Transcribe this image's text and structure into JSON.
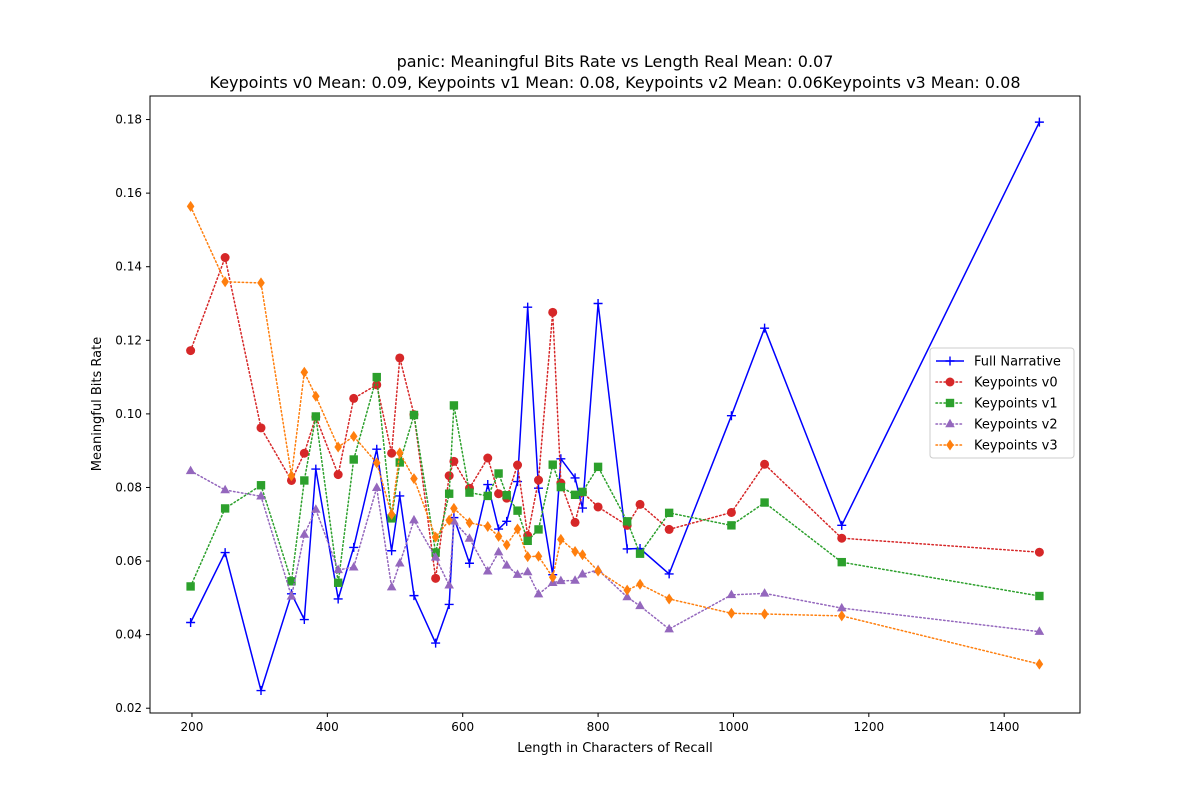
{
  "chart_data": {
    "type": "line",
    "title_line1": "panic: Meaningful Bits Rate vs Length Real Mean: 0.07",
    "title_line2": "Keypoints v0 Mean: 0.09, Keypoints v1 Mean: 0.08, Keypoints v2 Mean: 0.06Keypoints v3 Mean: 0.08",
    "xlabel": "Length in Characters of Recall",
    "ylabel": "Meaningful Bits Rate",
    "xlim": [
      138,
      1512
    ],
    "ylim": [
      0.0187,
      0.1864
    ],
    "xticks": [
      200,
      400,
      600,
      800,
      1000,
      1200,
      1400
    ],
    "yticks": [
      0.02,
      0.04,
      0.06,
      0.08,
      0.1,
      0.12,
      0.14,
      0.16,
      0.18
    ],
    "ytick_labels": [
      "0.02",
      "0.04",
      "0.06",
      "0.08",
      "0.10",
      "0.12",
      "0.14",
      "0.16",
      "0.18"
    ],
    "legend_position": "center-right",
    "series": [
      {
        "name": "Full Narrative",
        "color": "#0000ff",
        "marker": "plus",
        "linestyle": "solid",
        "x": [
          198,
          249,
          302,
          347,
          366,
          383,
          416,
          439,
          473,
          495,
          507,
          528,
          560,
          580,
          587,
          610,
          637,
          653,
          665,
          681,
          696,
          712,
          733,
          745,
          766,
          777,
          800,
          843,
          862,
          905,
          997,
          1046,
          1160,
          1452
        ],
        "y": [
          0.0433,
          0.0623,
          0.0248,
          0.0511,
          0.0441,
          0.085,
          0.0497,
          0.0637,
          0.0904,
          0.0628,
          0.0777,
          0.0506,
          0.0377,
          0.0482,
          0.0718,
          0.0594,
          0.0808,
          0.0687,
          0.0708,
          0.0816,
          0.129,
          0.0798,
          0.0563,
          0.0878,
          0.0826,
          0.0744,
          0.13,
          0.0633,
          0.0634,
          0.0565,
          0.0995,
          0.1233,
          0.0697,
          0.1793
        ]
      },
      {
        "name": "Keypoints v0",
        "color": "#d62728",
        "marker": "circle",
        "linestyle": "dotted",
        "x": [
          198,
          249,
          302,
          347,
          366,
          383,
          416,
          439,
          473,
          495,
          507,
          528,
          560,
          580,
          587,
          610,
          637,
          653,
          665,
          681,
          696,
          712,
          733,
          745,
          766,
          777,
          800,
          843,
          862,
          905,
          997,
          1046,
          1160,
          1452
        ],
        "y": [
          0.1172,
          0.1425,
          0.0962,
          0.0819,
          0.0893,
          0.0992,
          0.0835,
          0.1042,
          0.1079,
          0.0893,
          0.1152,
          0.0998,
          0.0553,
          0.0832,
          0.0871,
          0.0798,
          0.088,
          0.0783,
          0.0771,
          0.0861,
          0.0669,
          0.082,
          0.1276,
          0.0812,
          0.0705,
          0.0787,
          0.0747,
          0.0697,
          0.0754,
          0.0686,
          0.0732,
          0.0863,
          0.0662,
          0.0624
        ]
      },
      {
        "name": "Keypoints v1",
        "color": "#2ca02c",
        "marker": "square",
        "linestyle": "dotted",
        "x": [
          198,
          249,
          302,
          347,
          366,
          383,
          416,
          439,
          473,
          495,
          507,
          528,
          560,
          580,
          587,
          610,
          637,
          653,
          665,
          681,
          696,
          712,
          733,
          745,
          766,
          777,
          800,
          843,
          862,
          905,
          997,
          1046,
          1160,
          1452
        ],
        "y": [
          0.0531,
          0.0743,
          0.0806,
          0.0545,
          0.0819,
          0.0993,
          0.0541,
          0.0876,
          0.11,
          0.0716,
          0.0868,
          0.0997,
          0.0623,
          0.0783,
          0.1023,
          0.0786,
          0.0777,
          0.0838,
          0.0779,
          0.0737,
          0.0655,
          0.0686,
          0.0862,
          0.0801,
          0.078,
          0.0788,
          0.0856,
          0.0708,
          0.062,
          0.0731,
          0.0697,
          0.0759,
          0.0597,
          0.0505
        ]
      },
      {
        "name": "Keypoints v2",
        "color": "#9467bd",
        "marker": "triangle",
        "linestyle": "dotted",
        "x": [
          198,
          249,
          302,
          347,
          366,
          383,
          416,
          439,
          473,
          495,
          507,
          528,
          560,
          580,
          587,
          610,
          637,
          653,
          665,
          681,
          696,
          712,
          733,
          745,
          766,
          777,
          800,
          843,
          862,
          905,
          997,
          1046,
          1160,
          1452
        ],
        "y": [
          0.0845,
          0.0793,
          0.0776,
          0.0504,
          0.0672,
          0.074,
          0.0576,
          0.0583,
          0.0799,
          0.0529,
          0.0594,
          0.0711,
          0.061,
          0.0534,
          0.0708,
          0.0661,
          0.0572,
          0.0624,
          0.0588,
          0.0563,
          0.057,
          0.051,
          0.0541,
          0.0546,
          0.0547,
          0.0564,
          0.0576,
          0.0502,
          0.0478,
          0.0415,
          0.0508,
          0.0512,
          0.0472,
          0.0408
        ]
      },
      {
        "name": "Keypoints v3",
        "color": "#ff7f0e",
        "marker": "diamond",
        "linestyle": "dotted",
        "x": [
          198,
          249,
          302,
          347,
          366,
          383,
          416,
          439,
          473,
          495,
          507,
          528,
          560,
          580,
          587,
          610,
          637,
          653,
          665,
          681,
          696,
          712,
          733,
          745,
          766,
          777,
          800,
          843,
          862,
          905,
          997,
          1046,
          1160,
          1452
        ],
        "y": [
          0.1564,
          0.1359,
          0.1356,
          0.0832,
          0.1113,
          0.1048,
          0.091,
          0.0939,
          0.0867,
          0.0727,
          0.0894,
          0.0824,
          0.0665,
          0.0711,
          0.0743,
          0.0704,
          0.0694,
          0.0667,
          0.0644,
          0.0687,
          0.0612,
          0.0613,
          0.0556,
          0.0659,
          0.0626,
          0.0617,
          0.0573,
          0.0521,
          0.0537,
          0.0497,
          0.0458,
          0.0456,
          0.0451,
          0.032
        ]
      }
    ]
  }
}
